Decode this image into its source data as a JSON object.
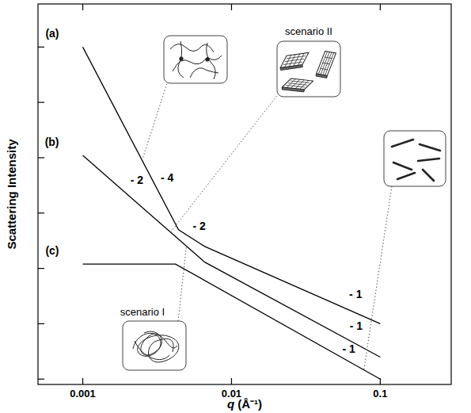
{
  "chart_data": {
    "type": "line",
    "x_label": "q (Å⁻¹)",
    "y_label": "Scattering Intensity",
    "log": true,
    "grid": false,
    "tick_labels": "x",
    "xlim": [
      0.0005,
      0.3
    ],
    "ylim": [
      8e-07,
      6
    ],
    "xticks": [
      0.001,
      0.01,
      0.1
    ],
    "yticks": [
      1e-06,
      1e-05,
      0.0001,
      0.001,
      0.01,
      0.1,
      1
    ],
    "series": [
      {
        "name": "(a)",
        "color": "#000000",
        "x": [
          0.001,
          0.0044,
          0.0066,
          0.1
        ],
        "values": [
          1,
          0.0005,
          0.00025,
          1e-05
        ],
        "slope_labels": [
          "- 4",
          "- 2",
          "- 1"
        ]
      },
      {
        "name": "(b)",
        "color": "#000000",
        "x": [
          0.001,
          0.0066,
          0.1
        ],
        "values": [
          0.011,
          0.00013,
          2.5e-06
        ],
        "slope_labels": [
          "- 2",
          "- 1"
        ]
      },
      {
        "name": "(c)",
        "color": "#000000",
        "x": [
          0.001,
          0.0042,
          0.1
        ],
        "values": [
          0.00012,
          0.00012,
          1e-06
        ],
        "slope_labels": [
          null,
          "- 1"
        ]
      }
    ],
    "annotations": [
      "scenario I",
      "scenario II"
    ]
  }
}
